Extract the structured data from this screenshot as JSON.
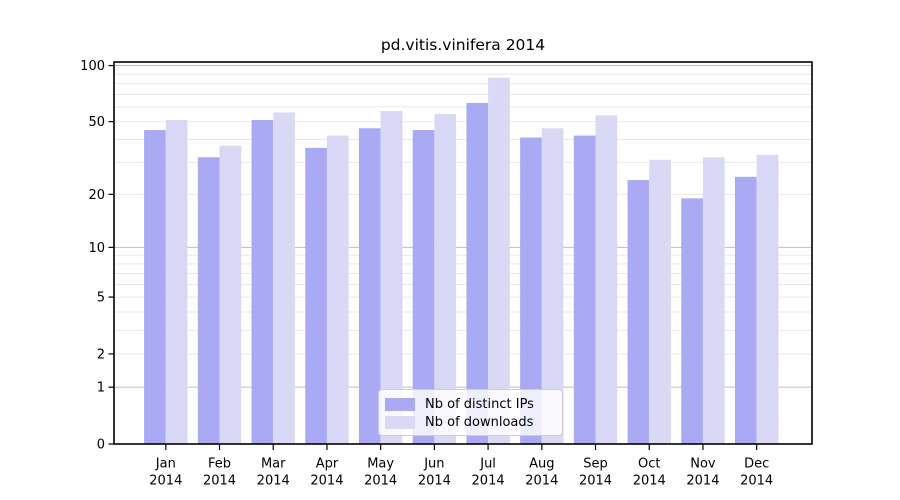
{
  "chart_data": {
    "type": "bar",
    "title": "pd.vitis.vinifera 2014",
    "categories": [
      "Jan",
      "Feb",
      "Mar",
      "Apr",
      "May",
      "Jun",
      "Jul",
      "Aug",
      "Sep",
      "Oct",
      "Nov",
      "Dec"
    ],
    "x_year_label": "2014",
    "series": [
      {
        "name": "Nb of distinct IPs",
        "color": "#aaaaf4",
        "values": [
          45,
          32,
          51,
          36,
          46,
          45,
          63,
          41,
          42,
          24,
          19,
          25
        ]
      },
      {
        "name": "Nb of downloads",
        "color": "#d9d9f6",
        "values": [
          51,
          37,
          56,
          42,
          57,
          55,
          86,
          46,
          54,
          31,
          32,
          33
        ]
      }
    ],
    "ylabel": "",
    "xlabel": "",
    "yscale": "log1p",
    "ylim": [
      0,
      104
    ],
    "yticks": [
      0,
      1,
      2,
      5,
      10,
      20,
      50,
      100
    ],
    "gridlines": {
      "minor": [
        2,
        3,
        4,
        5,
        6,
        7,
        8,
        9,
        20,
        30,
        40,
        50,
        60,
        70,
        80,
        90
      ],
      "major": [
        1,
        10,
        100
      ]
    },
    "grid": true,
    "legend_position": "lower center",
    "colors": {
      "axis": "#000000",
      "minor_grid": "#e9e9e9",
      "major_grid": "#bdbdbd",
      "background": "#ffffff"
    }
  }
}
